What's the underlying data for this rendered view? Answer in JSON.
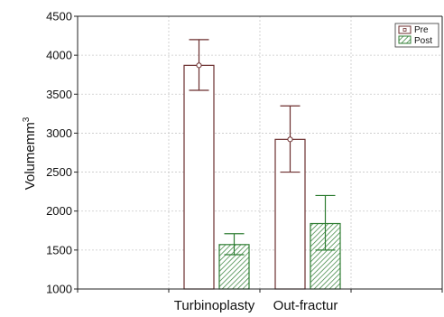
{
  "chart_data": {
    "type": "bar",
    "categories": [
      "Turbinoplasty",
      "Out-fractur"
    ],
    "series": [
      {
        "name": "Pre",
        "values": [
          3870,
          2920
        ],
        "err_low": [
          3550,
          2500
        ],
        "err_high": [
          4200,
          3350
        ],
        "color": "#6b2e2e",
        "fill": "none"
      },
      {
        "name": "Post",
        "values": [
          1570,
          1840
        ],
        "err_low": [
          1440,
          1500
        ],
        "err_high": [
          1710,
          2200
        ],
        "color": "#2e7d32",
        "fill": "hatch"
      }
    ],
    "ylabel": {
      "base": "Volumemm",
      "sup": "3"
    },
    "ylim": [
      1000,
      4500
    ],
    "yticks": [
      1000,
      1500,
      2000,
      2500,
      3000,
      3500,
      4000,
      4500
    ],
    "ytick_labels": [
      "1000",
      "1500",
      "2000",
      "2500",
      "3000",
      "3500",
      "4000",
      "4500"
    ],
    "grid": true,
    "legend": "top-right"
  }
}
